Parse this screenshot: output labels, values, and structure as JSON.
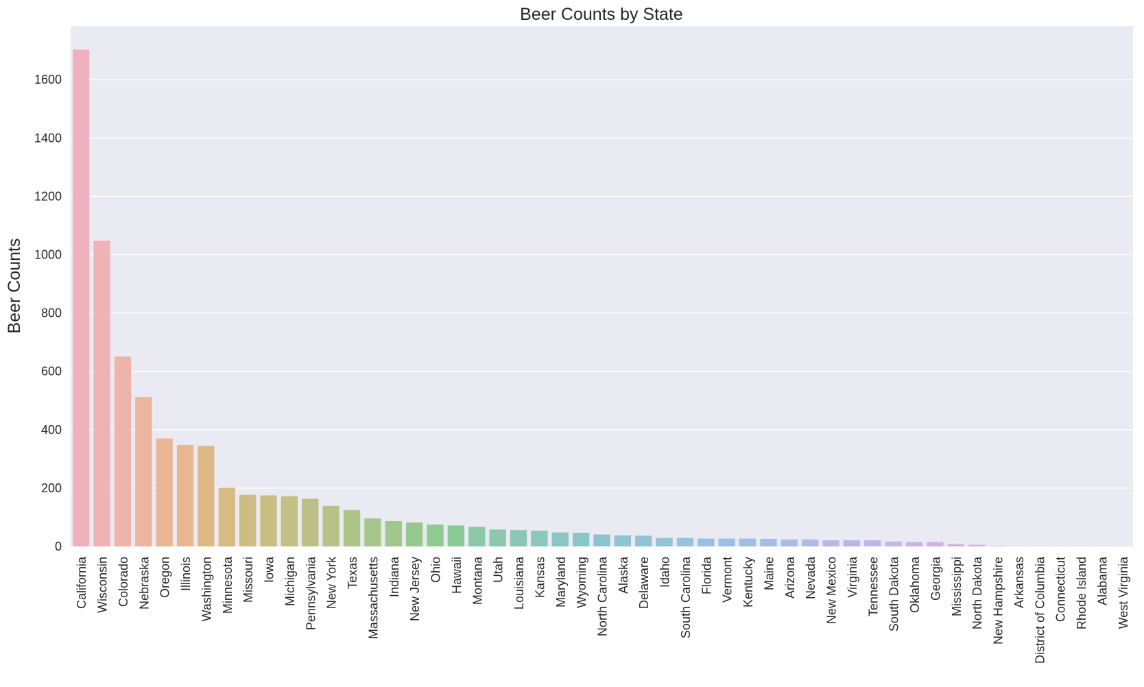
{
  "chart_data": {
    "type": "bar",
    "title": "Beer Counts by State",
    "xlabel": "",
    "ylabel": "Beer Counts",
    "ylim": [
      0,
      1780
    ],
    "yticks": [
      0,
      200,
      400,
      600,
      800,
      1000,
      1200,
      1400,
      1600
    ],
    "grid": true,
    "categories": [
      "California",
      "Wisconsin",
      "Colorado",
      "Nebraska",
      "Oregon",
      "Illinois",
      "Washington",
      "Minnesota",
      "Missouri",
      "Iowa",
      "Michigan",
      "Pennsylvania",
      "New York",
      "Texas",
      "Massachusetts",
      "Indiana",
      "New Jersey",
      "Ohio",
      "Hawaii",
      "Montana",
      "Utah",
      "Louisiana",
      "Kansas",
      "Maryland",
      "Wyoming",
      "North Carolina",
      "Alaska",
      "Delaware",
      "Idaho",
      "South Carolina",
      "Florida",
      "Vermont",
      "Kentucky",
      "Maine",
      "Arizona",
      "Nevada",
      "New Mexico",
      "Virginia",
      "Tennessee",
      "South Dakota",
      "Oklahoma",
      "Georgia",
      "Mississippi",
      "North Dakota",
      "New Hampshire",
      "Arkansas",
      "District of Columbia",
      "Connecticut",
      "Rhode Island",
      "Alabama",
      "West Virginia"
    ],
    "values": [
      1703,
      1048,
      651,
      512,
      370,
      348,
      345,
      201,
      177,
      175,
      172,
      163,
      139,
      125,
      96,
      87,
      82,
      75,
      72,
      67,
      58,
      56,
      54,
      48,
      47,
      41,
      38,
      37,
      29,
      29,
      27,
      27,
      27,
      26,
      24,
      24,
      21,
      21,
      21,
      17,
      15,
      15,
      8,
      6,
      2,
      1,
      1,
      1,
      1,
      1,
      0
    ],
    "colors": [
      "#f0b1be",
      "#efb2b5",
      "#eeb4aa",
      "#ecb59f",
      "#e9b796",
      "#e7b88d",
      "#deb987",
      "#d7bb83",
      "#cdbd82",
      "#c8be83",
      "#c2c085",
      "#bcc086",
      "#b6c287",
      "#aec589",
      "#a7c68b",
      "#a0c78c",
      "#97c98f",
      "#8fca92",
      "#88cb97",
      "#8bc9a8",
      "#8dc8ae",
      "#8cc7b6",
      "#8dc6bd",
      "#8cc6c2",
      "#8bc5c8",
      "#8cc4cd",
      "#8ec4d3",
      "#90c3d7",
      "#93c2db",
      "#96c1df",
      "#99c0e2",
      "#9dbfe4",
      "#a1bde6",
      "#a6bce7",
      "#abbbe8",
      "#b0b9e8",
      "#b5b8e8",
      "#bab7e8",
      "#c0b5e8",
      "#c5b4e7",
      "#cab3e6",
      "#cfb2e4",
      "#d4b1e2",
      "#d8b0df",
      "#dcafdb",
      "#e0afd7",
      "#e3afd2",
      "#e6afcd",
      "#e8b0c8",
      "#eab0c3",
      "#ecb0bf"
    ]
  }
}
